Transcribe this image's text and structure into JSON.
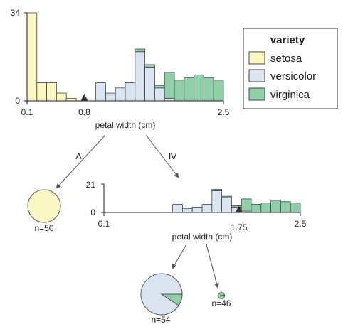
{
  "colors": {
    "setosa": "#fbf8c4",
    "versicolor": "#dbe5f2",
    "virginica": "#8fd0a8",
    "stroke": "#444444",
    "axis": "#222222"
  },
  "legend": {
    "title": "variety",
    "items": [
      {
        "label": "setosa",
        "color": "#fbf8c4"
      },
      {
        "label": "versicolor",
        "color": "#dbe5f2"
      },
      {
        "label": "virginica",
        "color": "#8fd0a8"
      }
    ]
  },
  "root_split": {
    "xlabel": "petal width (cm)",
    "ymax_label": "34",
    "ymin_label": "0",
    "xmin_label": "0.1",
    "xmax_label": "2.5",
    "threshold_label": "0.8",
    "threshold": 0.8
  },
  "branch_left_label": "<",
  "branch_right_label": "≥",
  "leaf_left": {
    "n_label": "n=50",
    "counts": {
      "setosa": 50,
      "versicolor": 0,
      "virginica": 0
    }
  },
  "inner_split": {
    "xlabel": "petal width (cm)",
    "ymax_label": "21",
    "ymin_label": "0",
    "xmin_label": "0.1",
    "xmax_label": "2.5",
    "threshold_label": "1.75",
    "threshold": 1.75
  },
  "leaf_inner_left": {
    "n_label": "n=54",
    "counts": {
      "setosa": 0,
      "versicolor": 49,
      "virginica": 5
    }
  },
  "leaf_inner_right": {
    "n_label": "n=46",
    "counts": {
      "setosa": 0,
      "versicolor": 1,
      "virginica": 45
    }
  },
  "chart_data": [
    {
      "type": "bar",
      "title": "",
      "xlabel": "petal width (cm)",
      "ylabel": "",
      "xlim": [
        0.1,
        2.5
      ],
      "ylim": [
        0,
        34
      ],
      "series": [
        {
          "name": "setosa",
          "values": [
            34,
            7,
            7,
            3,
            1,
            0,
            0,
            0,
            0,
            0,
            0,
            0,
            0,
            0,
            0,
            0,
            0,
            0,
            0,
            0
          ]
        },
        {
          "name": "versicolor",
          "values": [
            0,
            0,
            0,
            0,
            0,
            0,
            0,
            7,
            3,
            5,
            7,
            19,
            13,
            5,
            1,
            0,
            0,
            0,
            0,
            0
          ]
        },
        {
          "name": "virginica",
          "values": [
            0,
            0,
            0,
            0,
            0,
            0,
            0,
            0,
            0,
            0,
            0,
            1,
            1,
            1,
            10,
            8,
            9,
            10,
            9,
            8
          ]
        }
      ]
    },
    {
      "type": "bar",
      "title": "",
      "xlabel": "petal width (cm)",
      "ylabel": "",
      "xlim": [
        0.1,
        2.5
      ],
      "ylim": [
        0,
        21
      ],
      "series": [
        {
          "name": "versicolor",
          "values": [
            0,
            0,
            0,
            0,
            0,
            0,
            0,
            6,
            3,
            4,
            6,
            16,
            11,
            4,
            1,
            0,
            0,
            0,
            0,
            0
          ]
        },
        {
          "name": "virginica",
          "values": [
            0,
            0,
            0,
            0,
            0,
            0,
            0,
            0,
            0,
            0,
            0,
            1,
            1,
            1,
            9,
            6,
            7,
            9,
            8,
            7
          ]
        }
      ]
    }
  ]
}
